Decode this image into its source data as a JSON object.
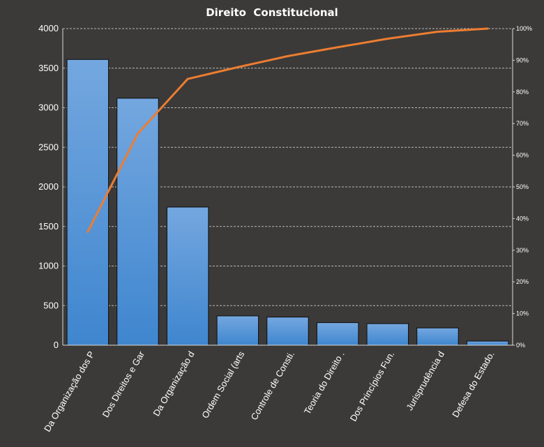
{
  "chart_data": {
    "type": "bar",
    "title": "Direito  Constitucional",
    "categories": [
      "Da Organização dos P",
      "Dos Direitos e Gar",
      "Da Organização d",
      "Ordem Social (arts",
      "Controle de Consti.",
      "Teoria do Direito  .",
      "Dos Princípios Fun.",
      "Jurisprudência d",
      "Defesa do Estado."
    ],
    "series": [
      {
        "type": "bar",
        "values": [
          3610,
          3120,
          1745,
          370,
          355,
          285,
          272,
          218,
          52
        ]
      },
      {
        "type": "line",
        "axis": "right",
        "values": [
          35.8,
          66.8,
          84.1,
          87.8,
          91.3,
          94.1,
          96.8,
          99.0,
          100
        ]
      }
    ],
    "ylim": [
      0,
      4000
    ],
    "yticks": [
      "0",
      "500",
      "1000",
      "1500",
      "2000",
      "2500",
      "3000",
      "3500",
      "4000"
    ],
    "y2lim": [
      0,
      100
    ],
    "y2ticks": [
      "0%",
      "10%",
      "20%",
      "30%",
      "40%",
      "50%",
      "60%",
      "70%",
      "80%",
      "90%",
      "100%"
    ],
    "grid": true,
    "legend": "none",
    "colors": {
      "background": "#3b3a38",
      "bar_top": "#74a7df",
      "bar_bottom": "#3f86cf",
      "bar_edge": "#0d0d0d",
      "line": "#ed7d31",
      "text": "#ffffff",
      "grid": "#b8b8b8"
    }
  }
}
